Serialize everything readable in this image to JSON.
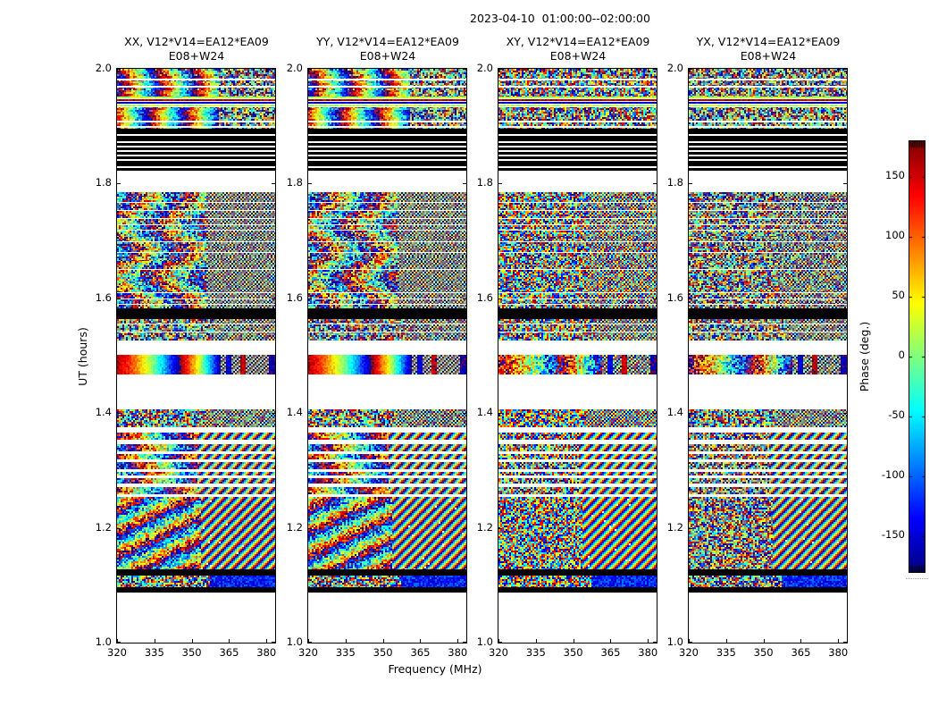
{
  "figure": {
    "title": "2023-04-10  01:00:00--02:00:00",
    "background": "#ffffff",
    "frame_color": "#000000"
  },
  "chart_data": {
    "type": "heatmap",
    "title": "2023-04-10  01:00:00--02:00:00",
    "xlabel": "Frequency (MHz)",
    "ylabel": "UT (hours)",
    "colormap": "jet",
    "panels": [
      {
        "id": "XX",
        "title_line1": "XX, V12*V14=EA12*EA09",
        "title_line2": "E08+W24",
        "coherent": true,
        "seed": 11
      },
      {
        "id": "YY",
        "title_line1": "YY, V12*V14=EA12*EA09",
        "title_line2": "E08+W24",
        "coherent": true,
        "seed": 23
      },
      {
        "id": "XY",
        "title_line1": "XY, V12*V14=EA12*EA09",
        "title_line2": "E08+W24",
        "coherent": false,
        "seed": 37
      },
      {
        "id": "YX",
        "title_line1": "YX, V12*V14=EA12*EA09",
        "title_line2": "E08+W24",
        "coherent": false,
        "seed": 51
      }
    ],
    "x_axis": {
      "ticks": [
        "320",
        "335",
        "350",
        "365",
        "380"
      ],
      "tick_values": [
        320,
        335,
        350,
        365,
        380
      ],
      "range": [
        320,
        383.5
      ],
      "unit": "MHz"
    },
    "y_axis": {
      "ticks": [
        "2.0",
        "1.8",
        "1.6",
        "1.4",
        "1.2",
        "1.0"
      ],
      "tick_values": [
        2.0,
        1.8,
        1.6,
        1.4,
        1.2,
        1.0
      ],
      "range": [
        1.0,
        2.0
      ],
      "unit": "hours"
    },
    "colorbar": {
      "label": "Phase (deg.)",
      "ticks": [
        "150",
        "100",
        "50",
        "0",
        "-50",
        "-100",
        "-150"
      ],
      "tick_values": [
        150,
        100,
        50,
        0,
        -50,
        -100,
        -150
      ],
      "range": [
        -180,
        180
      ]
    },
    "bands": [
      {
        "pattern": "fringes",
        "ut_from": 2.0,
        "ut_to": 1.896,
        "hatch_start": 0.64,
        "white_lines": [
          1.983,
          1.97,
          1.909,
          1.901
        ],
        "mixed_rows": [
          1.951,
          1.935
        ],
        "description": "smooth phase fringes vs frequency in XX/YY, random phase speckle in XY/YX"
      },
      {
        "pattern": "black",
        "ut_from": 1.896,
        "ut_to": 1.822,
        "white_lines": [
          1.886,
          1.874,
          1.866,
          1.858,
          1.851,
          1.843,
          1.83
        ],
        "description": "flagged scan (black) crossed by thin white gaps"
      },
      {
        "pattern": "blank",
        "ut_from": 1.822,
        "ut_to": 1.785
      },
      {
        "pattern": "structured",
        "ut_from": 1.785,
        "ut_to": 1.583,
        "hatch_start": 0.56,
        "description": "long noisy scan; coherent vertical phase bands below ~355 MHz in XX/YY, diagonal weave above"
      },
      {
        "pattern": "black",
        "ut_from": 1.583,
        "ut_to": 1.564,
        "white_lines": []
      },
      {
        "pattern": "speckle",
        "ut_from": 1.564,
        "ut_to": 1.528,
        "hatch_start": 0.6,
        "white_lines": [
          1.556,
          1.542
        ]
      },
      {
        "pattern": "blank",
        "ut_from": 1.528,
        "ut_to": 1.502
      },
      {
        "pattern": "fringe_strong",
        "ut_from": 1.502,
        "ut_to": 1.469,
        "hatch_start": 0.65,
        "description": "bright calibrator scan: saturated smooth phase wraps, hatched above ~360 MHz"
      },
      {
        "pattern": "blank",
        "ut_from": 1.469,
        "ut_to": 1.407
      },
      {
        "pattern": "speckle",
        "ut_from": 1.407,
        "ut_to": 1.376,
        "hatch_start": 0.55,
        "white_lines": []
      },
      {
        "pattern": "striped_rows",
        "ut_from": 1.376,
        "ut_to": 1.254,
        "stripe_start": 0.5,
        "rows": [
          [
            1.366,
            1.353
          ],
          [
            1.346,
            1.334
          ],
          [
            1.329,
            1.321
          ],
          [
            1.315,
            1.303
          ],
          [
            1.297,
            1.291
          ],
          [
            1.287,
            1.277
          ],
          [
            1.271,
            1.26
          ]
        ],
        "description": "interleaved short scans separated by white gaps; bold diagonal stripes above ~352 MHz"
      },
      {
        "pattern": "dense_block",
        "ut_from": 1.254,
        "ut_to": 1.128,
        "stripe_start": 0.52,
        "description": "dense scan; rainbow vertical bands with fine diagonal texture in XX/YY, bold diagonal stripes above ~353 MHz"
      },
      {
        "pattern": "black",
        "ut_from": 1.128,
        "ut_to": 1.117,
        "white_lines": []
      },
      {
        "pattern": "speckle_checker",
        "ut_from": 1.117,
        "ut_to": 1.096,
        "checker_start": 0.58
      },
      {
        "pattern": "black",
        "ut_from": 1.096,
        "ut_to": 1.088,
        "white_lines": []
      },
      {
        "pattern": "blank",
        "ut_from": 1.088,
        "ut_to": 1.0
      }
    ]
  }
}
